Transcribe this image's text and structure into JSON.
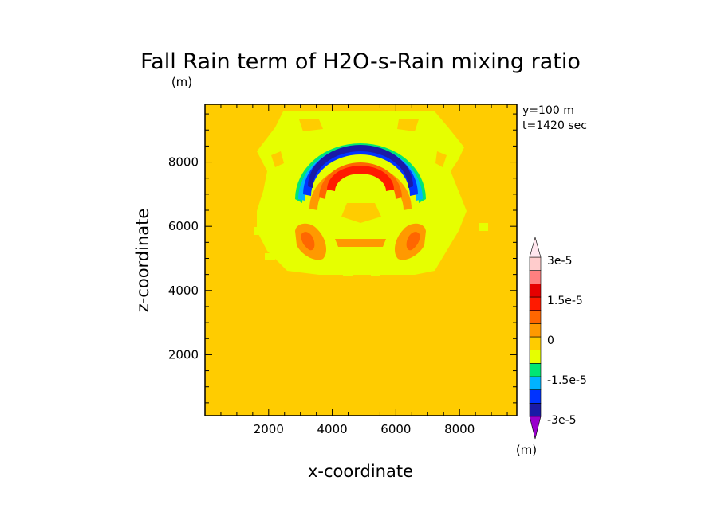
{
  "chart_data": {
    "type": "heatmap",
    "title": "Fall Rain term of H2O-s-Rain mixing ratio",
    "title_units": "(m)",
    "xlabel": "x-coordinate",
    "ylabel": "z-coordinate",
    "x_ticks": [
      2000,
      4000,
      6000,
      8000
    ],
    "y_ticks": [
      2000,
      4000,
      6000,
      8000
    ],
    "xlim": [
      0,
      9800
    ],
    "ylim": [
      100,
      9800
    ],
    "annotations": [
      "y=100 m",
      "t=1420 sec"
    ],
    "colorbar": {
      "units": "(m)",
      "labels": [
        "3e-5",
        "1.5e-5",
        "0",
        "-1.5e-5",
        "-3e-5"
      ],
      "levels": [
        -3e-05,
        -2.5e-05,
        -2e-05,
        -1.5e-05,
        -1e-05,
        -5e-06,
        0,
        5e-06,
        1e-05,
        1.5e-05,
        2e-05,
        2.5e-05,
        3e-05
      ],
      "colors": [
        "#9900cc",
        "#1a1aa6",
        "#0033ff",
        "#00b3ff",
        "#00e673",
        "#e6ff00",
        "#ffcc00",
        "#ff9900",
        "#ff6600",
        "#ff1a00",
        "#e60000",
        "#ff8080",
        "#ffcccc",
        "#ffe6ee"
      ]
    },
    "background_level_color": "#ffcc00",
    "features": [
      {
        "name": "upper negative arc",
        "center_x": 5000,
        "center_z": 6900,
        "radius_outer": 1700,
        "radius_inner": 1450,
        "color": "#0033ff"
      },
      {
        "name": "upper positive arc",
        "center_x": 5000,
        "center_z": 6900,
        "radius_outer": 1050,
        "radius_inner": 650,
        "color": "#ff1a00"
      },
      {
        "name": "left positive lobe",
        "center_x": 3700,
        "center_z": 5700,
        "color": "#ff6600"
      },
      {
        "name": "right positive lobe",
        "center_x": 6300,
        "center_z": 5700,
        "color": "#ff6600"
      }
    ]
  }
}
